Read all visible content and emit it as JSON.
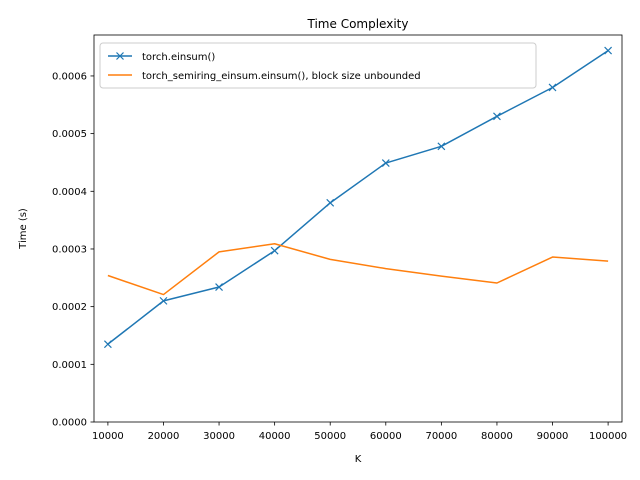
{
  "chart_data": {
    "type": "line",
    "title": "Time Complexity",
    "xlabel": "K",
    "ylabel": "Time (s)",
    "x": [
      10000,
      20000,
      30000,
      40000,
      50000,
      60000,
      70000,
      80000,
      90000,
      100000
    ],
    "x_tick_labels": [
      "10000",
      "20000",
      "30000",
      "40000",
      "50000",
      "60000",
      "70000",
      "80000",
      "90000",
      "100000"
    ],
    "y_ticks": [
      0,
      0.0001,
      0.0002,
      0.0003,
      0.0004,
      0.0005,
      0.0006
    ],
    "y_tick_labels": [
      "0.0000",
      "0.0001",
      "0.0002",
      "0.0003",
      "0.0004",
      "0.0005",
      "0.0006"
    ],
    "xlim": [
      7500,
      102500
    ],
    "ylim": [
      0,
      0.000671
    ],
    "grid": false,
    "legend_position": "top-left",
    "series": [
      {
        "name": "torch.einsum()",
        "color": "#1f77b4",
        "marker": "x",
        "values": [
          0.000135,
          0.00021,
          0.000234,
          0.000297,
          0.00038,
          0.000449,
          0.000478,
          0.00053,
          0.00058,
          0.000644
        ]
      },
      {
        "name": "torch_semiring_einsum.einsum(), block size unbounded",
        "color": "#ff7f0e",
        "marker": "none",
        "values": [
          0.000254,
          0.000221,
          0.000295,
          0.000309,
          0.000282,
          0.000266,
          0.000253,
          0.000241,
          0.000286,
          0.000279
        ]
      }
    ]
  }
}
